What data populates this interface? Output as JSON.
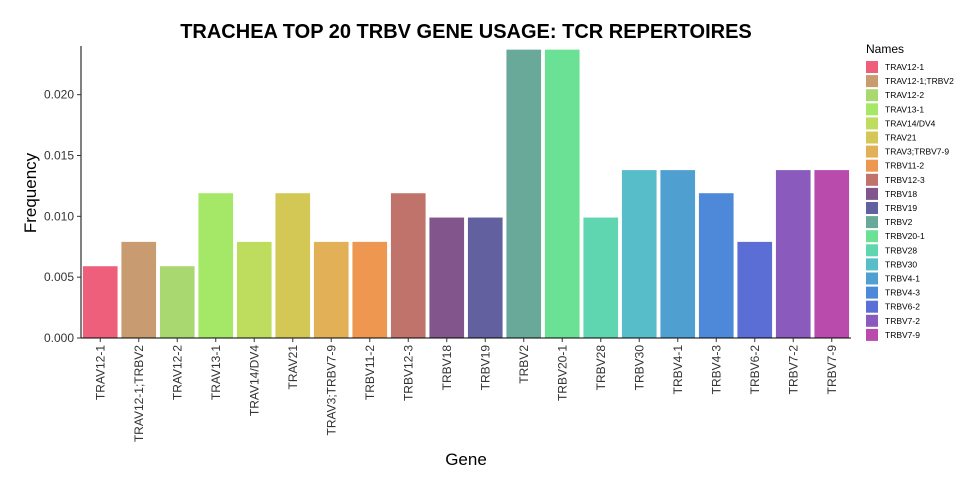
{
  "chart_data": {
    "type": "bar",
    "title": "TRACHEA TOP 20 TRBV GENE USAGE: TCR REPERTOIRES",
    "xlabel": "Gene",
    "ylabel": "Frequency",
    "ylim": [
      0,
      0.024
    ],
    "yticks": [
      {
        "value": 0.0,
        "label": "0.000"
      },
      {
        "value": 0.005,
        "label": "0.005"
      },
      {
        "value": 0.01,
        "label": "0.010"
      },
      {
        "value": 0.015,
        "label": "0.015"
      },
      {
        "value": 0.02,
        "label": "0.020"
      }
    ],
    "grid": false,
    "legend": {
      "title": "Names",
      "position": "right"
    },
    "categories": [
      "TRAV12-1",
      "TRAV12-1;TRBV2",
      "TRAV12-2",
      "TRAV13-1",
      "TRAV14/DV4",
      "TRAV21",
      "TRAV3;TRBV7-9",
      "TRBV11-2",
      "TRBV12-3",
      "TRBV18",
      "TRBV19",
      "TRBV2",
      "TRBV20-1",
      "TRBV28",
      "TRBV30",
      "TRBV4-1",
      "TRBV4-3",
      "TRBV6-2",
      "TRBV7-2",
      "TRBV7-9"
    ],
    "values": [
      0.0059,
      0.0079,
      0.0059,
      0.0119,
      0.0079,
      0.0119,
      0.0079,
      0.0079,
      0.0119,
      0.0099,
      0.0099,
      0.0237,
      0.0237,
      0.0099,
      0.0138,
      0.0138,
      0.0119,
      0.0079,
      0.0138,
      0.0138
    ],
    "colors": [
      "#ED5F7B",
      "#C99B71",
      "#A8D86F",
      "#A5E868",
      "#BEDD5E",
      "#D3C856",
      "#E2B057",
      "#EE9750",
      "#BF736A",
      "#83558D",
      "#62609E",
      "#68A99A",
      "#6BE196",
      "#5FD6AF",
      "#57BEC9",
      "#4FA0D0",
      "#4E88D8",
      "#5B6ED6",
      "#8A5BBD",
      "#B94BAD"
    ]
  }
}
